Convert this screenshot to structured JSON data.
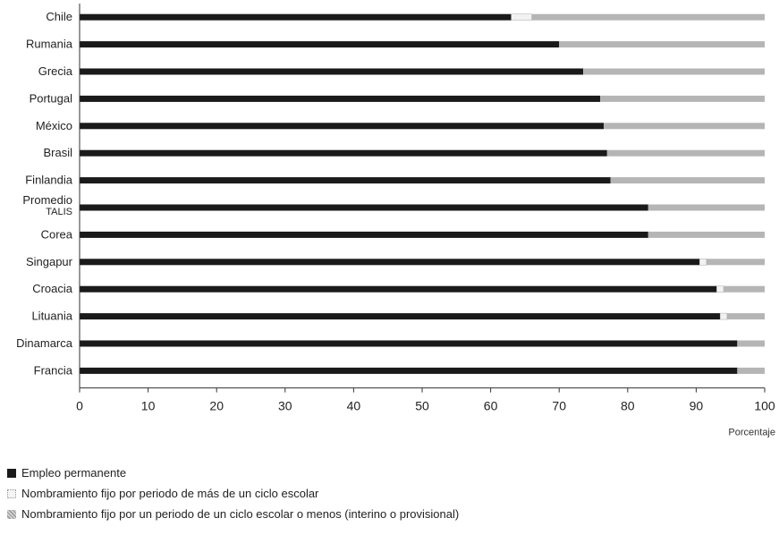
{
  "chart_data": {
    "type": "bar",
    "orientation": "horizontal",
    "stacked": true,
    "xlabel": "Porcentaje",
    "xlim": [
      0,
      100
    ],
    "xticks": [
      0,
      10,
      20,
      30,
      40,
      50,
      60,
      70,
      80,
      90,
      100
    ],
    "categories": [
      "Chile",
      "Rumania",
      "Grecia",
      "Portugal",
      "México",
      "Brasil",
      "Finlandia",
      "Promedio TALIS",
      "Corea",
      "Singapur",
      "Croacia",
      "Lituania",
      "Dinamarca",
      "Francia"
    ],
    "series": [
      {
        "name": "Empleo permanente",
        "color": "#1a1a1a",
        "values": [
          63,
          70,
          73.5,
          76,
          76.5,
          77,
          77.5,
          83,
          83,
          90.5,
          93,
          93.5,
          96,
          96
        ]
      },
      {
        "name": "Nombramiento fijo por periodo de más de un ciclo escolar",
        "color": "#f2f2f2",
        "values": [
          3,
          0,
          0,
          0,
          0,
          0,
          0,
          0,
          0,
          1,
          1,
          1,
          0,
          0
        ]
      },
      {
        "name": "Nombramiento fijo por un periodo de un ciclo escolar o menos (interino o provisional)",
        "color": "#b5b5b5",
        "values": [
          34,
          30,
          26.5,
          24,
          23.5,
          23,
          22.5,
          17,
          17,
          8.5,
          6,
          5.5,
          4,
          4
        ]
      }
    ],
    "grid": false,
    "legend_position": "bottom-left"
  },
  "legend": {
    "items": [
      {
        "label": "Empleo permanente"
      },
      {
        "label": "Nombramiento fijo por periodo de más de un ciclo escolar"
      },
      {
        "label": "Nombramiento fijo por un periodo de un ciclo escolar o menos (interino o provisional)"
      }
    ]
  }
}
